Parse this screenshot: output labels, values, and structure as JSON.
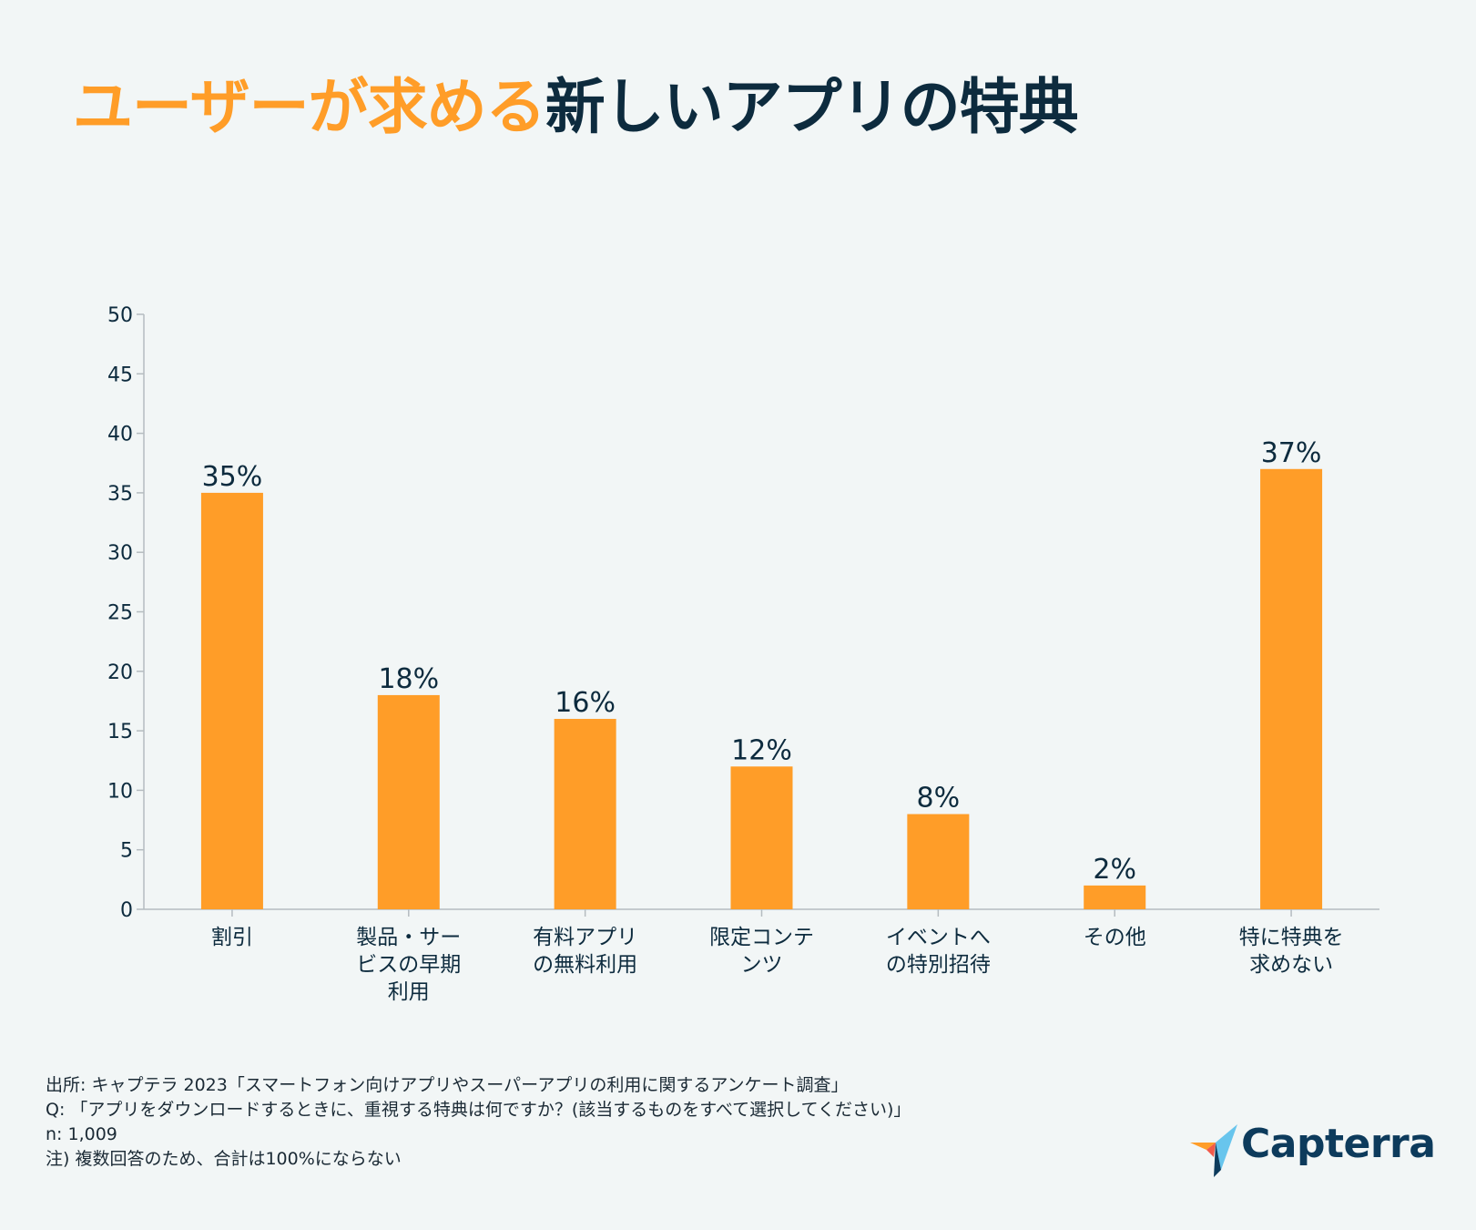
{
  "title": {
    "accent": "ユーザーが求める",
    "main": "新しいアプリの特典"
  },
  "colors": {
    "background": "#f2f6f6",
    "bar": "#ff9d28",
    "text": "#0d2b3e",
    "axis": "#b5bcc0"
  },
  "chart_data": {
    "type": "bar",
    "categories": [
      [
        "割引"
      ],
      [
        "製品・サー",
        "ビスの早期",
        "利用"
      ],
      [
        "有料アプリ",
        "の無料利用"
      ],
      [
        "限定コンテ",
        "ンツ"
      ],
      [
        "イベントへ",
        "の特別招待"
      ],
      [
        "その他"
      ],
      [
        "特に特典を",
        "求めない"
      ]
    ],
    "values": [
      35,
      18,
      16,
      12,
      8,
      2,
      37
    ],
    "data_labels": [
      "35%",
      "18%",
      "16%",
      "12%",
      "8%",
      "2%",
      "37%"
    ],
    "ylim": [
      0,
      50
    ],
    "yticks": [
      0,
      5,
      10,
      15,
      20,
      25,
      30,
      35,
      40,
      45,
      50
    ],
    "xlabel": "",
    "ylabel": ""
  },
  "footer": {
    "source": "出所: キャプテラ 2023「スマートフォン向けアプリやスーパーアプリの利用に関するアンケート調査」",
    "question": "Q: 「アプリをダウンロードするときに、重視する特典は何ですか？(該当するものをすべて選択してください)」",
    "n": "n: 1,009",
    "note": "注) 複数回答のため、合計は100%にならない"
  },
  "logo": {
    "text": "Capterra",
    "icon": "capterra-arrow-icon"
  }
}
